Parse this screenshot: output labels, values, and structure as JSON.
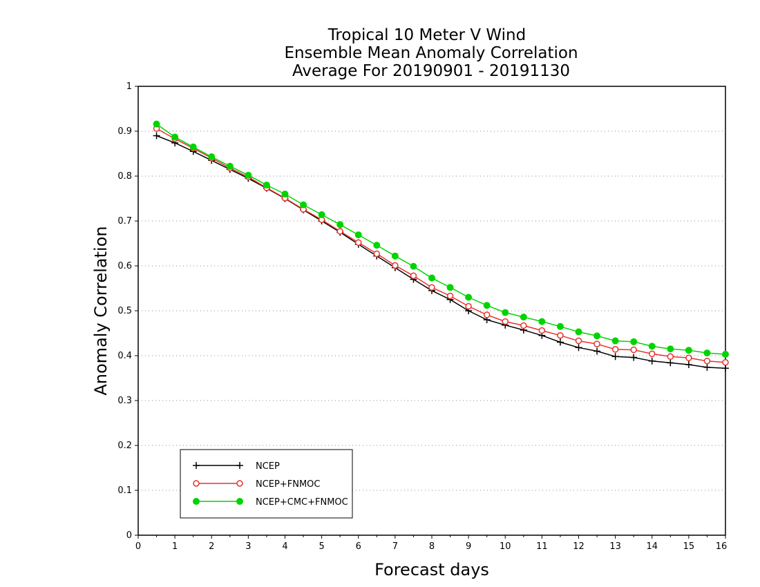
{
  "chart_data": {
    "type": "line",
    "title": [
      "Tropical 10 Meter V Wind",
      "Ensemble Mean Anomaly Correlation",
      "Average For 20190901 - 20191130"
    ],
    "xlabel": "Forecast days",
    "ylabel": "Anomaly Correlation",
    "xlim": [
      0,
      16
    ],
    "ylim": [
      0,
      1
    ],
    "x_ticks": [
      "0",
      "1",
      "2",
      "3",
      "4",
      "5",
      "6",
      "7",
      "8",
      "9",
      "10",
      "11",
      "12",
      "13",
      "14",
      "15",
      "16"
    ],
    "y_ticks": [
      "0",
      "0.1",
      "0.2",
      "0.3",
      "0.4",
      "0.5",
      "0.6",
      "0.7",
      "0.8",
      "0.9",
      "1"
    ],
    "grid": "horizontal dotted",
    "legend_position": "bottom-left",
    "x": [
      0.5,
      1,
      1.5,
      2,
      2.5,
      3,
      3.5,
      4,
      4.5,
      5,
      5.5,
      6,
      6.5,
      7,
      7.5,
      8,
      8.5,
      9,
      9.5,
      10,
      10.5,
      11,
      11.5,
      12,
      12.5,
      13,
      13.5,
      14,
      14.5,
      15,
      15.5,
      16
    ],
    "series": [
      {
        "name": "NCEP",
        "color": "#000000",
        "marker": "plus",
        "values": [
          0.89,
          0.874,
          0.855,
          0.835,
          0.815,
          0.795,
          0.773,
          0.75,
          0.725,
          0.7,
          0.675,
          0.648,
          0.622,
          0.596,
          0.57,
          0.545,
          0.525,
          0.5,
          0.48,
          0.468,
          0.457,
          0.445,
          0.43,
          0.418,
          0.41,
          0.398,
          0.396,
          0.388,
          0.384,
          0.38,
          0.374,
          0.372
        ]
      },
      {
        "name": "NCEP+FNMOC",
        "color": "#e8302a",
        "marker": "open-circle",
        "values": [
          0.906,
          0.883,
          0.862,
          0.84,
          0.818,
          0.798,
          0.774,
          0.751,
          0.726,
          0.703,
          0.677,
          0.652,
          0.627,
          0.601,
          0.578,
          0.552,
          0.533,
          0.51,
          0.491,
          0.476,
          0.467,
          0.456,
          0.445,
          0.433,
          0.426,
          0.414,
          0.413,
          0.404,
          0.398,
          0.395,
          0.388,
          0.385
        ]
      },
      {
        "name": "NCEP+CMC+FNMOC",
        "color": "#00d400",
        "marker": "filled-circle",
        "values": [
          0.916,
          0.887,
          0.865,
          0.843,
          0.822,
          0.802,
          0.78,
          0.76,
          0.736,
          0.714,
          0.692,
          0.669,
          0.646,
          0.622,
          0.599,
          0.573,
          0.552,
          0.53,
          0.512,
          0.496,
          0.486,
          0.476,
          0.465,
          0.453,
          0.444,
          0.433,
          0.431,
          0.421,
          0.415,
          0.412,
          0.406,
          0.403
        ]
      }
    ]
  }
}
